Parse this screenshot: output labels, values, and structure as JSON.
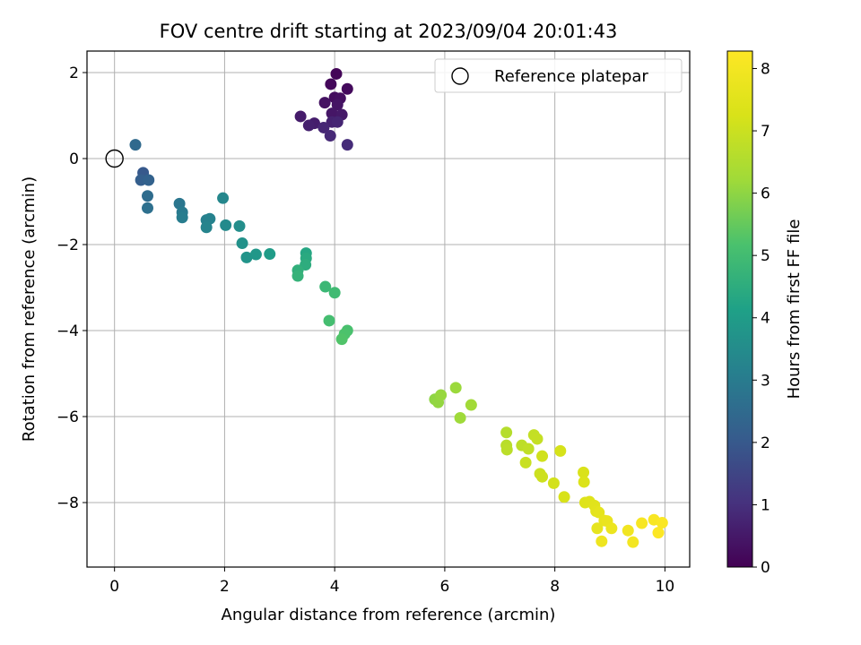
{
  "chart_data": {
    "type": "scatter",
    "title": "FOV centre drift starting at 2023/09/04 20:01:43",
    "xlabel": "Angular distance from reference (arcmin)",
    "ylabel": "Rotation from reference (arcmin)",
    "xlim": [
      -0.5,
      10.45
    ],
    "ylim": [
      -9.5,
      2.5
    ],
    "x_ticks": [
      0,
      2,
      4,
      6,
      8,
      10
    ],
    "x_tick_labels": [
      "0",
      "2",
      "4",
      "6",
      "8",
      "10"
    ],
    "y_ticks": [
      2,
      0,
      -2,
      -4,
      -6,
      -8
    ],
    "y_tick_labels": [
      "2",
      "0",
      "−2",
      "−4",
      "−6",
      "−8"
    ],
    "grid": true,
    "legend": {
      "placement": "upper-right",
      "entries": [
        "Reference platepar"
      ]
    },
    "colorbar": {
      "label": "Hours from first FF file",
      "colormap": "viridis",
      "range": [
        0,
        8.28
      ],
      "ticks": [
        0,
        1,
        2,
        3,
        4,
        5,
        6,
        7,
        8
      ],
      "tick_labels": [
        "0",
        "1",
        "2",
        "3",
        "4",
        "5",
        "6",
        "7",
        "8"
      ]
    },
    "reference_point": {
      "name": "Reference platepar",
      "x": 0,
      "y": 0
    },
    "series": [
      {
        "color_by": "hours",
        "points": [
          [
            4.03,
            1.97,
            0.1
          ],
          [
            3.93,
            1.73,
            0.15
          ],
          [
            4.23,
            1.62,
            0.2
          ],
          [
            4.0,
            1.42,
            0.25
          ],
          [
            4.1,
            1.4,
            0.3
          ],
          [
            3.82,
            1.3,
            0.35
          ],
          [
            4.05,
            1.25,
            0.4
          ],
          [
            3.95,
            1.05,
            0.45
          ],
          [
            4.13,
            1.02,
            0.5
          ],
          [
            3.38,
            0.98,
            0.55
          ],
          [
            3.63,
            0.82,
            0.6
          ],
          [
            3.53,
            0.77,
            0.65
          ],
          [
            3.95,
            0.85,
            0.7
          ],
          [
            4.05,
            0.85,
            0.75
          ],
          [
            3.8,
            0.72,
            0.8
          ],
          [
            3.92,
            0.53,
            0.85
          ],
          [
            4.23,
            0.32,
            0.9
          ],
          [
            0.52,
            -0.33,
            2.0
          ],
          [
            0.48,
            -0.5,
            2.15
          ],
          [
            0.62,
            -0.5,
            2.25
          ],
          [
            0.38,
            0.32,
            2.45
          ],
          [
            0.6,
            -0.87,
            2.55
          ],
          [
            0.6,
            -1.15,
            2.65
          ],
          [
            1.18,
            -1.05,
            2.85
          ],
          [
            1.23,
            -1.25,
            2.95
          ],
          [
            1.23,
            -1.37,
            3.05
          ],
          [
            1.67,
            -1.43,
            3.15
          ],
          [
            1.73,
            -1.4,
            3.2
          ],
          [
            1.67,
            -1.6,
            3.25
          ],
          [
            1.97,
            -0.92,
            3.35
          ],
          [
            2.02,
            -1.55,
            3.45
          ],
          [
            2.27,
            -1.57,
            3.55
          ],
          [
            2.32,
            -1.97,
            3.65
          ],
          [
            2.4,
            -2.3,
            3.75
          ],
          [
            2.57,
            -2.23,
            3.85
          ],
          [
            2.82,
            -2.22,
            4.0
          ],
          [
            3.48,
            -2.2,
            4.3
          ],
          [
            3.48,
            -2.32,
            4.4
          ],
          [
            3.47,
            -2.47,
            4.5
          ],
          [
            3.33,
            -2.6,
            4.6
          ],
          [
            3.33,
            -2.73,
            4.7
          ],
          [
            3.83,
            -2.98,
            4.85
          ],
          [
            4.0,
            -3.12,
            4.95
          ],
          [
            3.9,
            -3.77,
            5.05
          ],
          [
            4.23,
            -4.0,
            5.15
          ],
          [
            4.18,
            -4.08,
            5.2
          ],
          [
            4.13,
            -4.2,
            5.25
          ],
          [
            5.82,
            -5.6,
            6.0
          ],
          [
            5.88,
            -5.67,
            6.05
          ],
          [
            5.93,
            -5.5,
            6.1
          ],
          [
            6.2,
            -5.33,
            6.15
          ],
          [
            6.28,
            -6.03,
            6.2
          ],
          [
            6.48,
            -5.73,
            6.25
          ],
          [
            7.12,
            -6.37,
            6.6
          ],
          [
            7.12,
            -6.67,
            6.65
          ],
          [
            7.13,
            -6.77,
            6.7
          ],
          [
            7.4,
            -6.67,
            6.75
          ],
          [
            7.52,
            -6.75,
            6.8
          ],
          [
            7.62,
            -6.43,
            6.85
          ],
          [
            7.68,
            -6.52,
            6.9
          ],
          [
            7.47,
            -7.07,
            6.95
          ],
          [
            7.73,
            -7.33,
            7.0
          ],
          [
            7.77,
            -7.4,
            7.05
          ],
          [
            7.77,
            -6.92,
            7.1
          ],
          [
            7.98,
            -7.55,
            7.15
          ],
          [
            8.1,
            -6.8,
            7.2
          ],
          [
            8.17,
            -7.87,
            7.25
          ],
          [
            8.52,
            -7.3,
            7.3
          ],
          [
            8.53,
            -7.52,
            7.35
          ],
          [
            8.55,
            -8.0,
            7.4
          ],
          [
            8.63,
            -7.98,
            7.45
          ],
          [
            8.72,
            -8.07,
            7.5
          ],
          [
            8.75,
            -8.2,
            7.55
          ],
          [
            8.8,
            -8.23,
            7.6
          ],
          [
            8.77,
            -8.6,
            7.65
          ],
          [
            8.9,
            -8.42,
            7.7
          ],
          [
            8.95,
            -8.43,
            7.75
          ],
          [
            9.03,
            -8.6,
            7.8
          ],
          [
            8.85,
            -8.9,
            7.85
          ],
          [
            9.33,
            -8.65,
            7.95
          ],
          [
            9.42,
            -8.92,
            8.0
          ],
          [
            9.58,
            -8.48,
            8.1
          ],
          [
            9.8,
            -8.4,
            8.15
          ],
          [
            9.95,
            -8.47,
            8.2
          ],
          [
            9.88,
            -8.7,
            8.25
          ]
        ]
      }
    ]
  }
}
